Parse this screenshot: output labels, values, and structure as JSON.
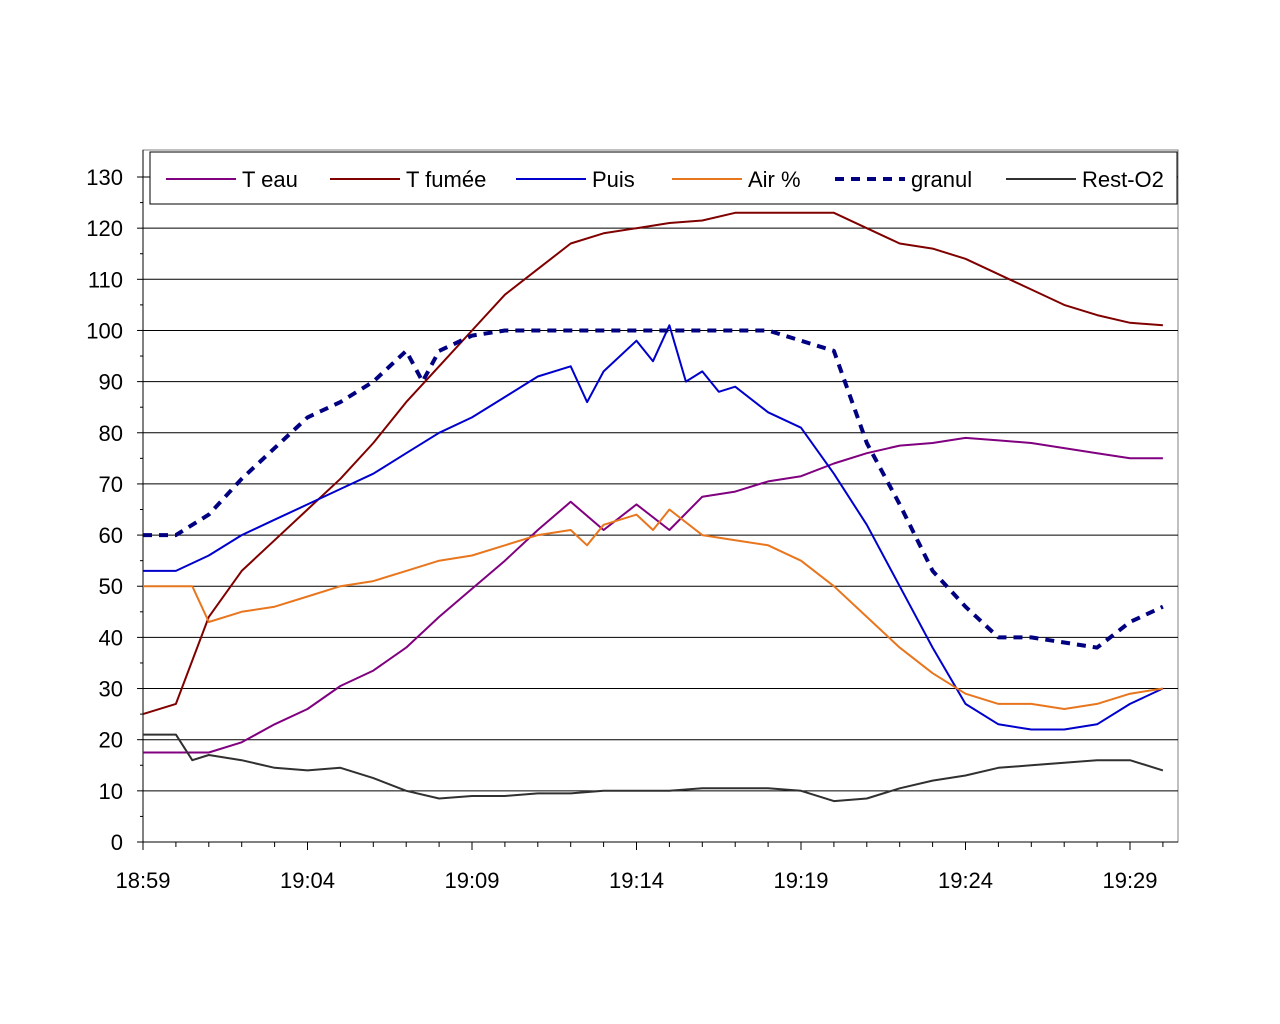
{
  "chart_data": {
    "type": "line",
    "title": "",
    "xlabel": "",
    "ylabel": "",
    "ylim": [
      0,
      130
    ],
    "yticks": [
      "0",
      "10",
      "20",
      "30",
      "40",
      "50",
      "60",
      "70",
      "80",
      "90",
      "100",
      "110",
      "120",
      "130"
    ],
    "xlim": [
      "18:59",
      "19:30"
    ],
    "xticks": [
      "18:59",
      "19:04",
      "19:09",
      "19:14",
      "19:19",
      "19:24",
      "19:29"
    ],
    "grid": true,
    "legend_position": "top",
    "series": [
      {
        "name": "T eau",
        "color": "#800080",
        "dash": "solid",
        "points": [
          [
            "18:59",
            17.5
          ],
          [
            "19:00",
            17.5
          ],
          [
            "19:01",
            17.5
          ],
          [
            "19:02",
            19.5
          ],
          [
            "19:03",
            23
          ],
          [
            "19:04",
            26
          ],
          [
            "19:05",
            30.5
          ],
          [
            "19:06",
            33.5
          ],
          [
            "19:07",
            38
          ],
          [
            "19:08",
            44
          ],
          [
            "19:09",
            49.5
          ],
          [
            "19:10",
            55
          ],
          [
            "19:11",
            61
          ],
          [
            "19:12",
            66.5
          ],
          [
            "19:13",
            61
          ],
          [
            "19:14",
            66
          ],
          [
            "19:15",
            61
          ],
          [
            "19:16",
            67.5
          ],
          [
            "19:17",
            68.5
          ],
          [
            "19:18",
            70.5
          ],
          [
            "19:19",
            71.5
          ],
          [
            "19:20",
            74
          ],
          [
            "19:21",
            76
          ],
          [
            "19:22",
            77.5
          ],
          [
            "19:23",
            78
          ],
          [
            "19:24",
            79
          ],
          [
            "19:25",
            78.5
          ],
          [
            "19:26",
            78
          ],
          [
            "19:27",
            77
          ],
          [
            "19:28",
            76
          ],
          [
            "19:29",
            75
          ],
          [
            "19:30",
            75
          ]
        ]
      },
      {
        "name": "T fumée",
        "color": "#800000",
        "dash": "solid",
        "points": [
          [
            "18:59",
            25
          ],
          [
            "19:00",
            27
          ],
          [
            "19:01",
            44
          ],
          [
            "19:02",
            53
          ],
          [
            "19:03",
            59
          ],
          [
            "19:04",
            65
          ],
          [
            "19:05",
            71
          ],
          [
            "19:06",
            78
          ],
          [
            "19:07",
            86
          ],
          [
            "19:08",
            93
          ],
          [
            "19:09",
            100
          ],
          [
            "19:10",
            107
          ],
          [
            "19:11",
            112
          ],
          [
            "19:12",
            117
          ],
          [
            "19:13",
            119
          ],
          [
            "19:14",
            120
          ],
          [
            "19:15",
            121
          ],
          [
            "19:16",
            121.5
          ],
          [
            "19:17",
            123
          ],
          [
            "19:18",
            123
          ],
          [
            "19:19",
            123
          ],
          [
            "19:20",
            123
          ],
          [
            "19:21",
            120
          ],
          [
            "19:22",
            117
          ],
          [
            "19:23",
            116
          ],
          [
            "19:24",
            114
          ],
          [
            "19:25",
            111
          ],
          [
            "19:26",
            108
          ],
          [
            "19:27",
            105
          ],
          [
            "19:28",
            103
          ],
          [
            "19:29",
            101.5
          ],
          [
            "19:30",
            101
          ]
        ]
      },
      {
        "name": "Puis",
        "color": "#0000cc",
        "dash": "solid",
        "points": [
          [
            "18:59",
            53
          ],
          [
            "19:00",
            53
          ],
          [
            "19:01",
            56
          ],
          [
            "19:02",
            60
          ],
          [
            "19:03",
            63
          ],
          [
            "19:04",
            66
          ],
          [
            "19:05",
            69
          ],
          [
            "19:06",
            72
          ],
          [
            "19:07",
            76
          ],
          [
            "19:08",
            80
          ],
          [
            "19:09",
            83
          ],
          [
            "19:10",
            87
          ],
          [
            "19:11",
            91
          ],
          [
            "19:12",
            93
          ],
          [
            "19:12:30",
            86
          ],
          [
            "19:13",
            92
          ],
          [
            "19:14",
            98
          ],
          [
            "19:14:30",
            94
          ],
          [
            "19:15",
            101
          ],
          [
            "19:15:30",
            90
          ],
          [
            "19:16",
            92
          ],
          [
            "19:16:30",
            88
          ],
          [
            "19:17",
            89
          ],
          [
            "19:18",
            84
          ],
          [
            "19:19",
            81
          ],
          [
            "19:20",
            72
          ],
          [
            "19:21",
            62
          ],
          [
            "19:22",
            50
          ],
          [
            "19:23",
            38
          ],
          [
            "19:24",
            27
          ],
          [
            "19:25",
            23
          ],
          [
            "19:26",
            22
          ],
          [
            "19:27",
            22
          ],
          [
            "19:28",
            23
          ],
          [
            "19:29",
            27
          ],
          [
            "19:30",
            30
          ]
        ]
      },
      {
        "name": "Air %",
        "color": "#e8761e",
        "dash": "solid",
        "points": [
          [
            "18:59",
            50
          ],
          [
            "19:00",
            50
          ],
          [
            "19:00:30",
            50
          ],
          [
            "19:01",
            43
          ],
          [
            "19:02",
            45
          ],
          [
            "19:03",
            46
          ],
          [
            "19:04",
            48
          ],
          [
            "19:05",
            50
          ],
          [
            "19:06",
            51
          ],
          [
            "19:07",
            53
          ],
          [
            "19:08",
            55
          ],
          [
            "19:09",
            56
          ],
          [
            "19:10",
            58
          ],
          [
            "19:11",
            60
          ],
          [
            "19:12",
            61
          ],
          [
            "19:12:30",
            58
          ],
          [
            "19:13",
            62
          ],
          [
            "19:14",
            64
          ],
          [
            "19:14:30",
            61
          ],
          [
            "19:15",
            65
          ],
          [
            "19:16",
            60
          ],
          [
            "19:17",
            59
          ],
          [
            "19:18",
            58
          ],
          [
            "19:19",
            55
          ],
          [
            "19:20",
            50
          ],
          [
            "19:21",
            44
          ],
          [
            "19:22",
            38
          ],
          [
            "19:23",
            33
          ],
          [
            "19:24",
            29
          ],
          [
            "19:25",
            27
          ],
          [
            "19:26",
            27
          ],
          [
            "19:27",
            26
          ],
          [
            "19:28",
            27
          ],
          [
            "19:29",
            29
          ],
          [
            "19:30",
            30
          ]
        ]
      },
      {
        "name": "granul",
        "color": "#000080",
        "dash": "dashed",
        "points": [
          [
            "18:59",
            60
          ],
          [
            "19:00",
            60
          ],
          [
            "19:01",
            64
          ],
          [
            "19:02",
            71
          ],
          [
            "19:03",
            77
          ],
          [
            "19:04",
            83
          ],
          [
            "19:05",
            86
          ],
          [
            "19:06",
            90
          ],
          [
            "19:07",
            96
          ],
          [
            "19:07:30",
            90
          ],
          [
            "19:08",
            96
          ],
          [
            "19:09",
            99
          ],
          [
            "19:10",
            100
          ],
          [
            "19:11",
            100
          ],
          [
            "19:12",
            100
          ],
          [
            "19:13",
            100
          ],
          [
            "19:14",
            100
          ],
          [
            "19:15",
            100
          ],
          [
            "19:16",
            100
          ],
          [
            "19:17",
            100
          ],
          [
            "19:18",
            100
          ],
          [
            "19:19",
            98
          ],
          [
            "19:20",
            96
          ],
          [
            "19:21",
            78
          ],
          [
            "19:22",
            66
          ],
          [
            "19:23",
            53
          ],
          [
            "19:24",
            46
          ],
          [
            "19:25",
            40
          ],
          [
            "19:26",
            40
          ],
          [
            "19:27",
            39
          ],
          [
            "19:28",
            38
          ],
          [
            "19:29",
            43
          ],
          [
            "19:30",
            46
          ]
        ]
      },
      {
        "name": "Rest-O2",
        "color": "#303030",
        "dash": "solid",
        "points": [
          [
            "18:59",
            21
          ],
          [
            "19:00",
            21
          ],
          [
            "19:00:30",
            16
          ],
          [
            "19:01",
            17
          ],
          [
            "19:02",
            16
          ],
          [
            "19:03",
            14.5
          ],
          [
            "19:04",
            14
          ],
          [
            "19:05",
            14.5
          ],
          [
            "19:06",
            12.5
          ],
          [
            "19:07",
            10
          ],
          [
            "19:08",
            8.5
          ],
          [
            "19:09",
            9
          ],
          [
            "19:10",
            9
          ],
          [
            "19:11",
            9.5
          ],
          [
            "19:12",
            9.5
          ],
          [
            "19:13",
            10
          ],
          [
            "19:14",
            10
          ],
          [
            "19:15",
            10
          ],
          [
            "19:16",
            10.5
          ],
          [
            "19:17",
            10.5
          ],
          [
            "19:18",
            10.5
          ],
          [
            "19:19",
            10
          ],
          [
            "19:20",
            8
          ],
          [
            "19:21",
            8.5
          ],
          [
            "19:22",
            10.5
          ],
          [
            "19:23",
            12
          ],
          [
            "19:24",
            13
          ],
          [
            "19:25",
            14.5
          ],
          [
            "19:26",
            15
          ],
          [
            "19:27",
            15.5
          ],
          [
            "19:28",
            16
          ],
          [
            "19:29",
            16
          ],
          [
            "19:30",
            14
          ]
        ]
      }
    ]
  }
}
